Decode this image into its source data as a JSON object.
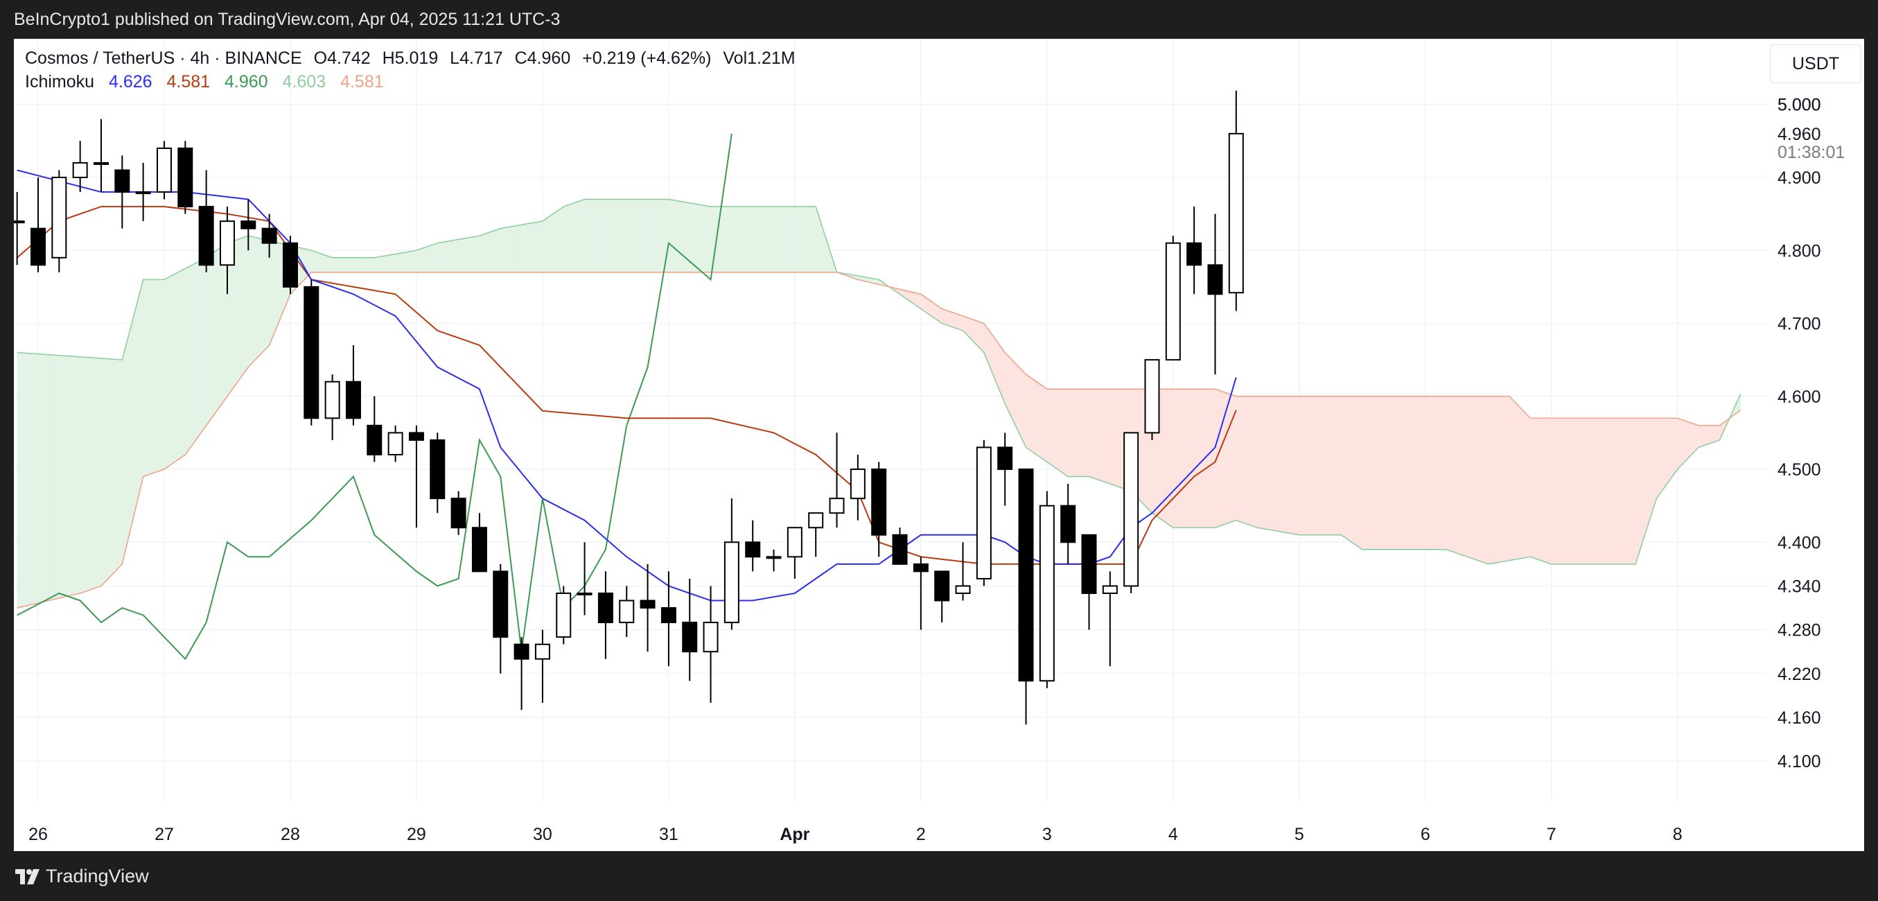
{
  "header": {
    "published": "BeInCrypto1 published on TradingView.com, Apr 04, 2025 11:21 UTC-3"
  },
  "legend": {
    "symbol": "Cosmos / TetherUS · 4h · BINANCE",
    "open_label": "O",
    "open": "4.742",
    "high_label": "H",
    "high": "5.019",
    "low_label": "L",
    "low": "4.717",
    "close_label": "C",
    "close": "4.960",
    "change": "+0.219 (+4.62%)",
    "volume": "Vol1.21M",
    "indicator": "Ichimoku",
    "indicator_values": [
      "4.626",
      "4.581",
      "4.960",
      "4.603",
      "4.581"
    ]
  },
  "currency_button": "USDT",
  "footer": {
    "brand": "TradingView"
  },
  "colors": {
    "conversion": "#2b2ef0",
    "base": "#b83a10",
    "lagging": "#3d9a52",
    "span_a": "#8fcf9f",
    "span_b": "#eda58a",
    "cloud_bull": "#e3f3e6",
    "cloud_bear": "#fde4e0",
    "candle_up": "#ffffff",
    "candle_down": "#000000",
    "grid": "#f0f3fa"
  },
  "chart_data": {
    "type": "candlestick",
    "title": "",
    "xlabel": "",
    "ylabel": "",
    "ylim": [
      4.045,
      5.09
    ],
    "y_ticks": [
      "4.100",
      "4.160",
      "4.220",
      "4.280",
      "4.340",
      "4.400",
      "4.500",
      "4.600",
      "4.700",
      "4.800",
      "4.900",
      "5.000"
    ],
    "x_ticks": [
      {
        "label": "26",
        "t": 0
      },
      {
        "label": "27",
        "t": 6
      },
      {
        "label": "28",
        "t": 12
      },
      {
        "label": "29",
        "t": 18
      },
      {
        "label": "30",
        "t": 24
      },
      {
        "label": "31",
        "t": 30
      },
      {
        "label": "Apr",
        "t": 36,
        "bold": true
      },
      {
        "label": "2",
        "t": 42
      },
      {
        "label": "3",
        "t": 48
      },
      {
        "label": "4",
        "t": 54
      },
      {
        "label": "5",
        "t": 60
      },
      {
        "label": "6",
        "t": 66
      },
      {
        "label": "7",
        "t": 72
      },
      {
        "label": "8",
        "t": 78
      }
    ],
    "price_labels": [
      {
        "value": 5.0,
        "text": "5.000"
      },
      {
        "value": 4.96,
        "text": "4.960"
      },
      {
        "value": 4.935,
        "text": "01:38:01"
      }
    ],
    "candles": [
      {
        "t": -1,
        "o": 4.84,
        "h": 4.88,
        "l": 4.78,
        "c": 4.84
      },
      {
        "t": 0,
        "o": 4.83,
        "h": 4.9,
        "l": 4.77,
        "c": 4.78
      },
      {
        "t": 1,
        "o": 4.79,
        "h": 4.91,
        "l": 4.77,
        "c": 4.9
      },
      {
        "t": 2,
        "o": 4.9,
        "h": 4.95,
        "l": 4.88,
        "c": 4.92
      },
      {
        "t": 3,
        "o": 4.92,
        "h": 4.98,
        "l": 4.88,
        "c": 4.92
      },
      {
        "t": 4,
        "o": 4.91,
        "h": 4.93,
        "l": 4.83,
        "c": 4.88
      },
      {
        "t": 5,
        "o": 4.88,
        "h": 4.92,
        "l": 4.84,
        "c": 4.88
      },
      {
        "t": 6,
        "o": 4.88,
        "h": 4.95,
        "l": 4.87,
        "c": 4.94
      },
      {
        "t": 7,
        "o": 4.94,
        "h": 4.95,
        "l": 4.85,
        "c": 4.86
      },
      {
        "t": 8,
        "o": 4.86,
        "h": 4.91,
        "l": 4.77,
        "c": 4.78
      },
      {
        "t": 9,
        "o": 4.78,
        "h": 4.86,
        "l": 4.74,
        "c": 4.84
      },
      {
        "t": 10,
        "o": 4.84,
        "h": 4.87,
        "l": 4.8,
        "c": 4.83
      },
      {
        "t": 11,
        "o": 4.83,
        "h": 4.85,
        "l": 4.79,
        "c": 4.81
      },
      {
        "t": 12,
        "o": 4.81,
        "h": 4.82,
        "l": 4.74,
        "c": 4.75
      },
      {
        "t": 13,
        "o": 4.75,
        "h": 4.76,
        "l": 4.56,
        "c": 4.57
      },
      {
        "t": 14,
        "o": 4.57,
        "h": 4.63,
        "l": 4.54,
        "c": 4.62
      },
      {
        "t": 15,
        "o": 4.62,
        "h": 4.67,
        "l": 4.56,
        "c": 4.57
      },
      {
        "t": 16,
        "o": 4.56,
        "h": 4.6,
        "l": 4.51,
        "c": 4.52
      },
      {
        "t": 17,
        "o": 4.52,
        "h": 4.56,
        "l": 4.51,
        "c": 4.55
      },
      {
        "t": 18,
        "o": 4.55,
        "h": 4.56,
        "l": 4.42,
        "c": 4.54
      },
      {
        "t": 19,
        "o": 4.54,
        "h": 4.55,
        "l": 4.44,
        "c": 4.46
      },
      {
        "t": 20,
        "o": 4.46,
        "h": 4.47,
        "l": 4.41,
        "c": 4.42
      },
      {
        "t": 21,
        "o": 4.42,
        "h": 4.44,
        "l": 4.36,
        "c": 4.36
      },
      {
        "t": 22,
        "o": 4.36,
        "h": 4.37,
        "l": 4.22,
        "c": 4.27
      },
      {
        "t": 23,
        "o": 4.26,
        "h": 4.27,
        "l": 4.17,
        "c": 4.24
      },
      {
        "t": 24,
        "o": 4.24,
        "h": 4.28,
        "l": 4.18,
        "c": 4.26
      },
      {
        "t": 25,
        "o": 4.27,
        "h": 4.34,
        "l": 4.26,
        "c": 4.33
      },
      {
        "t": 26,
        "o": 4.33,
        "h": 4.4,
        "l": 4.3,
        "c": 4.33
      },
      {
        "t": 27,
        "o": 4.33,
        "h": 4.36,
        "l": 4.24,
        "c": 4.29
      },
      {
        "t": 28,
        "o": 4.29,
        "h": 4.34,
        "l": 4.27,
        "c": 4.32
      },
      {
        "t": 29,
        "o": 4.32,
        "h": 4.37,
        "l": 4.25,
        "c": 4.31
      },
      {
        "t": 30,
        "o": 4.31,
        "h": 4.36,
        "l": 4.23,
        "c": 4.29
      },
      {
        "t": 31,
        "o": 4.29,
        "h": 4.35,
        "l": 4.21,
        "c": 4.25
      },
      {
        "t": 32,
        "o": 4.25,
        "h": 4.34,
        "l": 4.18,
        "c": 4.29
      },
      {
        "t": 33,
        "o": 4.29,
        "h": 4.46,
        "l": 4.28,
        "c": 4.4
      },
      {
        "t": 34,
        "o": 4.4,
        "h": 4.43,
        "l": 4.36,
        "c": 4.38
      },
      {
        "t": 35,
        "o": 4.38,
        "h": 4.39,
        "l": 4.36,
        "c": 4.38
      },
      {
        "t": 36,
        "o": 4.38,
        "h": 4.42,
        "l": 4.35,
        "c": 4.42
      },
      {
        "t": 37,
        "o": 4.42,
        "h": 4.44,
        "l": 4.38,
        "c": 4.44
      },
      {
        "t": 38,
        "o": 4.44,
        "h": 4.55,
        "l": 4.42,
        "c": 4.46
      },
      {
        "t": 39,
        "o": 4.46,
        "h": 4.52,
        "l": 4.43,
        "c": 4.5
      },
      {
        "t": 40,
        "o": 4.5,
        "h": 4.51,
        "l": 4.38,
        "c": 4.41
      },
      {
        "t": 41,
        "o": 4.41,
        "h": 4.42,
        "l": 4.37,
        "c": 4.37
      },
      {
        "t": 42,
        "o": 4.37,
        "h": 4.38,
        "l": 4.28,
        "c": 4.36
      },
      {
        "t": 43,
        "o": 4.36,
        "h": 4.36,
        "l": 4.29,
        "c": 4.32
      },
      {
        "t": 44,
        "o": 4.33,
        "h": 4.4,
        "l": 4.32,
        "c": 4.34
      },
      {
        "t": 45,
        "o": 4.35,
        "h": 4.54,
        "l": 4.34,
        "c": 4.53
      },
      {
        "t": 46,
        "o": 4.53,
        "h": 4.55,
        "l": 4.45,
        "c": 4.5
      },
      {
        "t": 47,
        "o": 4.5,
        "h": 4.5,
        "l": 4.15,
        "c": 4.21
      },
      {
        "t": 48,
        "o": 4.21,
        "h": 4.47,
        "l": 4.2,
        "c": 4.45
      },
      {
        "t": 49,
        "o": 4.45,
        "h": 4.48,
        "l": 4.37,
        "c": 4.4
      },
      {
        "t": 50,
        "o": 4.41,
        "h": 4.41,
        "l": 4.28,
        "c": 4.33
      },
      {
        "t": 51,
        "o": 4.33,
        "h": 4.36,
        "l": 4.23,
        "c": 4.34
      },
      {
        "t": 52,
        "o": 4.34,
        "h": 4.55,
        "l": 4.33,
        "c": 4.55
      },
      {
        "t": 53,
        "o": 4.55,
        "h": 4.65,
        "l": 4.54,
        "c": 4.65
      },
      {
        "t": 54,
        "o": 4.65,
        "h": 4.82,
        "l": 4.65,
        "c": 4.81
      },
      {
        "t": 55,
        "o": 4.81,
        "h": 4.86,
        "l": 4.74,
        "c": 4.78
      },
      {
        "t": 56,
        "o": 4.78,
        "h": 4.85,
        "l": 4.63,
        "c": 4.74
      },
      {
        "t": 57,
        "o": 4.742,
        "h": 5.019,
        "l": 4.717,
        "c": 4.96
      }
    ],
    "conversion_line": [
      [
        -1,
        4.91
      ],
      [
        3,
        4.88
      ],
      [
        7,
        4.88
      ],
      [
        10,
        4.87
      ],
      [
        12,
        4.81
      ],
      [
        13,
        4.76
      ],
      [
        15,
        4.74
      ],
      [
        17,
        4.71
      ],
      [
        19,
        4.64
      ],
      [
        21,
        4.61
      ],
      [
        22,
        4.53
      ],
      [
        24,
        4.46
      ],
      [
        26,
        4.43
      ],
      [
        28,
        4.38
      ],
      [
        30,
        4.34
      ],
      [
        32,
        4.32
      ],
      [
        34,
        4.32
      ],
      [
        36,
        4.33
      ],
      [
        38,
        4.37
      ],
      [
        40,
        4.37
      ],
      [
        42,
        4.41
      ],
      [
        45,
        4.41
      ],
      [
        46,
        4.4
      ],
      [
        47,
        4.38
      ],
      [
        48,
        4.37
      ],
      [
        50,
        4.37
      ],
      [
        51,
        4.38
      ],
      [
        52,
        4.42
      ],
      [
        53,
        4.44
      ],
      [
        55,
        4.5
      ],
      [
        56,
        4.53
      ],
      [
        57,
        4.626
      ]
    ],
    "base_line": [
      [
        -1,
        4.79
      ],
      [
        1,
        4.84
      ],
      [
        3,
        4.86
      ],
      [
        6,
        4.86
      ],
      [
        9,
        4.85
      ],
      [
        11,
        4.84
      ],
      [
        13,
        4.76
      ],
      [
        15,
        4.75
      ],
      [
        17,
        4.74
      ],
      [
        19,
        4.69
      ],
      [
        21,
        4.67
      ],
      [
        23,
        4.61
      ],
      [
        24,
        4.58
      ],
      [
        28,
        4.57
      ],
      [
        32,
        4.57
      ],
      [
        35,
        4.55
      ],
      [
        37,
        4.52
      ],
      [
        39,
        4.47
      ],
      [
        40,
        4.4
      ],
      [
        42,
        4.38
      ],
      [
        45,
        4.37
      ],
      [
        47,
        4.37
      ],
      [
        49,
        4.37
      ],
      [
        52,
        4.37
      ],
      [
        53,
        4.43
      ],
      [
        55,
        4.49
      ],
      [
        56,
        4.51
      ],
      [
        57,
        4.581
      ]
    ],
    "lagging_line": [
      [
        -1,
        4.3
      ],
      [
        1,
        4.33
      ],
      [
        2,
        4.32
      ],
      [
        3,
        4.29
      ],
      [
        4,
        4.31
      ],
      [
        5,
        4.3
      ],
      [
        7,
        4.24
      ],
      [
        8,
        4.29
      ],
      [
        9,
        4.4
      ],
      [
        10,
        4.38
      ],
      [
        11,
        4.38
      ],
      [
        13,
        4.43
      ],
      [
        14,
        4.46
      ],
      [
        15,
        4.49
      ],
      [
        16,
        4.41
      ],
      [
        18,
        4.36
      ],
      [
        19,
        4.34
      ],
      [
        20,
        4.35
      ],
      [
        21,
        4.54
      ],
      [
        22,
        4.49
      ],
      [
        23,
        4.25
      ],
      [
        24,
        4.46
      ],
      [
        25,
        4.31
      ],
      [
        26,
        4.34
      ],
      [
        27,
        4.39
      ],
      [
        28,
        4.56
      ],
      [
        29,
        4.64
      ],
      [
        30,
        4.81
      ],
      [
        32,
        4.76
      ],
      [
        33,
        4.96
      ]
    ],
    "senkou_a": [
      [
        -1,
        4.66
      ],
      [
        4,
        4.65
      ],
      [
        5,
        4.76
      ],
      [
        6,
        4.76
      ],
      [
        8,
        4.79
      ],
      [
        9,
        4.81
      ],
      [
        10,
        4.82
      ],
      [
        13,
        4.8
      ],
      [
        14,
        4.79
      ],
      [
        16,
        4.79
      ],
      [
        18,
        4.8
      ],
      [
        19,
        4.81
      ],
      [
        21,
        4.82
      ],
      [
        22,
        4.83
      ],
      [
        24,
        4.84
      ],
      [
        25,
        4.86
      ],
      [
        26,
        4.87
      ],
      [
        28,
        4.87
      ],
      [
        30,
        4.87
      ],
      [
        32,
        4.86
      ],
      [
        35,
        4.86
      ],
      [
        37,
        4.86
      ],
      [
        38,
        4.77
      ],
      [
        40,
        4.76
      ],
      [
        42,
        4.72
      ],
      [
        43,
        4.7
      ],
      [
        44,
        4.69
      ],
      [
        45,
        4.66
      ],
      [
        46,
        4.59
      ],
      [
        47,
        4.53
      ],
      [
        48,
        4.51
      ],
      [
        49,
        4.49
      ],
      [
        50,
        4.49
      ],
      [
        51,
        4.48
      ],
      [
        52,
        4.47
      ],
      [
        53,
        4.44
      ],
      [
        54,
        4.42
      ],
      [
        56,
        4.42
      ],
      [
        57,
        4.43
      ],
      [
        58,
        4.42
      ],
      [
        60,
        4.41
      ],
      [
        62,
        4.41
      ],
      [
        63,
        4.39
      ],
      [
        64,
        4.39
      ],
      [
        66,
        4.39
      ],
      [
        67,
        4.39
      ],
      [
        68,
        4.38
      ],
      [
        69,
        4.37
      ],
      [
        71,
        4.38
      ],
      [
        72,
        4.37
      ],
      [
        75,
        4.37
      ],
      [
        76,
        4.37
      ],
      [
        77,
        4.46
      ],
      [
        78,
        4.5
      ],
      [
        79,
        4.53
      ],
      [
        80,
        4.54
      ],
      [
        81,
        4.603
      ]
    ],
    "senkou_b": [
      [
        -1,
        4.31
      ],
      [
        2,
        4.33
      ],
      [
        3,
        4.34
      ],
      [
        4,
        4.37
      ],
      [
        5,
        4.49
      ],
      [
        6,
        4.5
      ],
      [
        7,
        4.52
      ],
      [
        8,
        4.56
      ],
      [
        9,
        4.6
      ],
      [
        10,
        4.64
      ],
      [
        11,
        4.67
      ],
      [
        12,
        4.74
      ],
      [
        13,
        4.77
      ],
      [
        38,
        4.77
      ],
      [
        39,
        4.76
      ],
      [
        42,
        4.74
      ],
      [
        43,
        4.72
      ],
      [
        44,
        4.71
      ],
      [
        45,
        4.7
      ],
      [
        46,
        4.66
      ],
      [
        47,
        4.63
      ],
      [
        48,
        4.61
      ],
      [
        52,
        4.61
      ],
      [
        56,
        4.61
      ],
      [
        57,
        4.6
      ],
      [
        60,
        4.6
      ],
      [
        64,
        4.6
      ],
      [
        70,
        4.6
      ],
      [
        71,
        4.57
      ],
      [
        76,
        4.57
      ],
      [
        78,
        4.57
      ],
      [
        79,
        4.56
      ],
      [
        80,
        4.56
      ],
      [
        81,
        4.581
      ]
    ]
  }
}
